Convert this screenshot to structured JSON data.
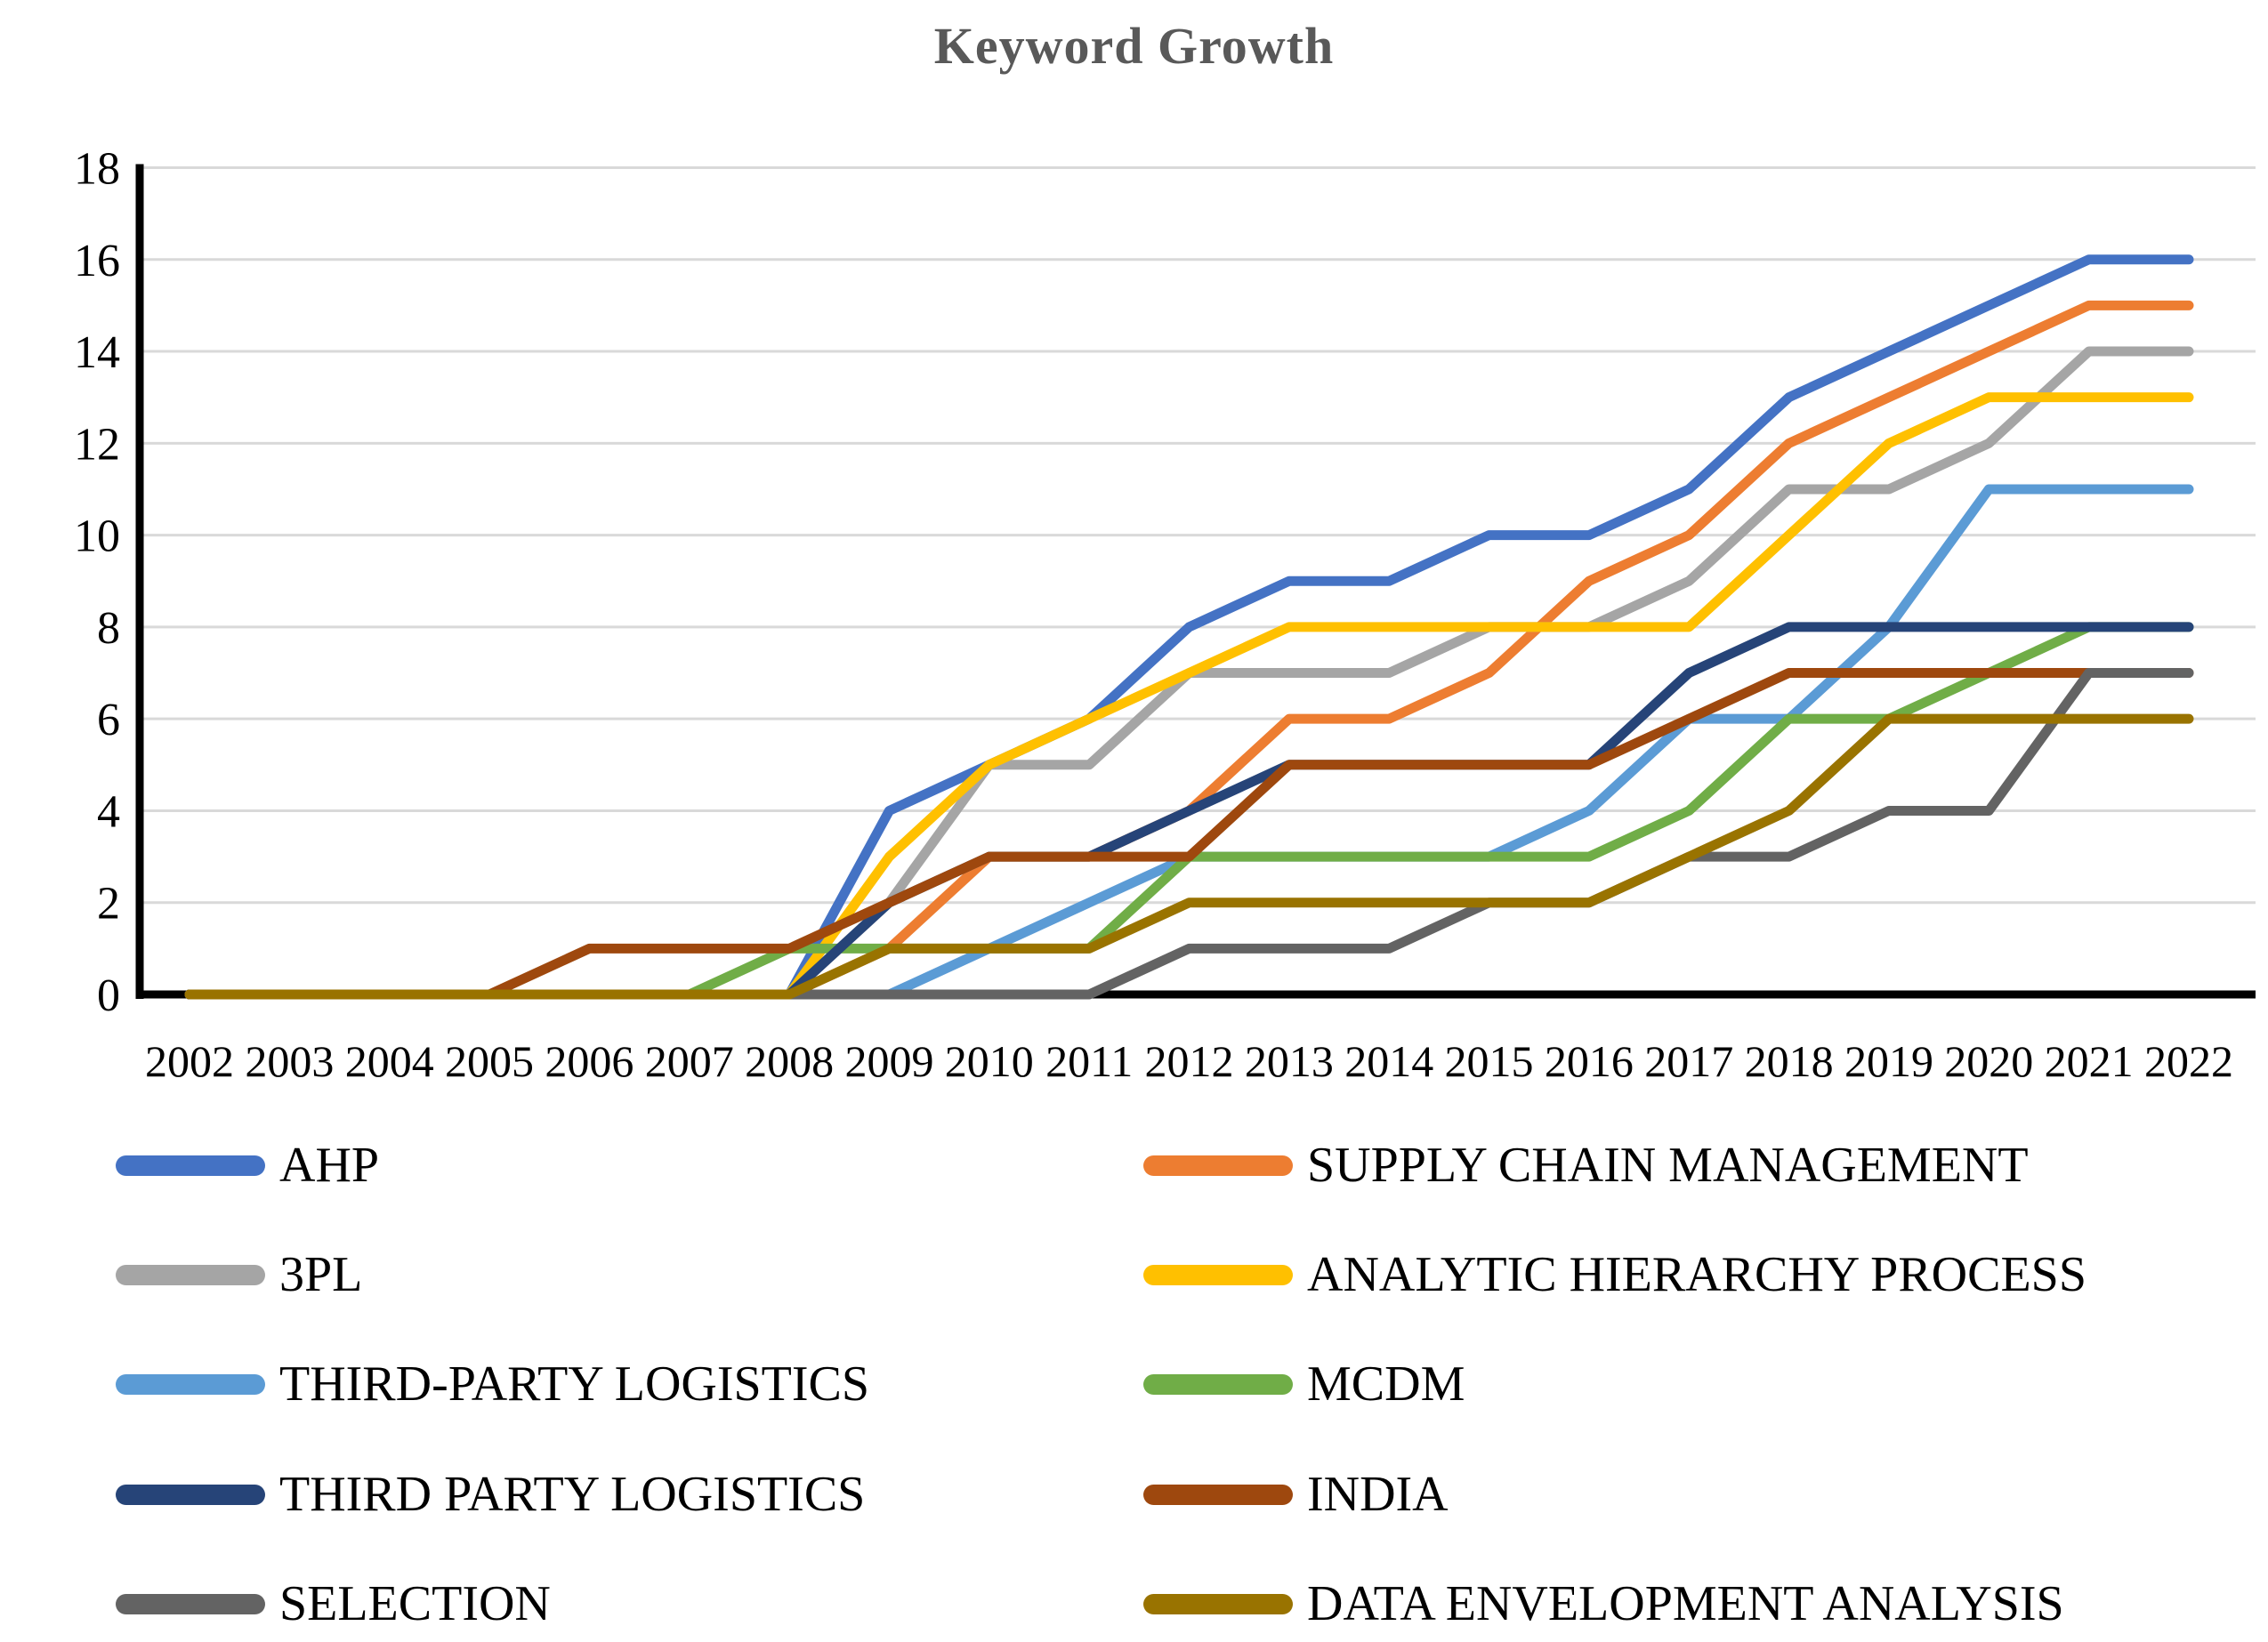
{
  "chart_data": {
    "type": "line",
    "title": "Keyword Growth",
    "x": [
      2002,
      2003,
      2004,
      2005,
      2006,
      2007,
      2008,
      2009,
      2010,
      2011,
      2012,
      2013,
      2014,
      2015,
      2016,
      2017,
      2018,
      2019,
      2020,
      2021,
      2022
    ],
    "yticks": [
      0,
      2,
      4,
      6,
      8,
      10,
      12,
      14,
      16,
      18
    ],
    "ylim": [
      0,
      18
    ],
    "grid": "horizontal",
    "legend_position": "bottom-two-columns",
    "axis_color": "#000000",
    "gridline_color": "#d9d9d9",
    "title_color": "#595959",
    "series": [
      {
        "name": "AHP",
        "color": "#4472C4",
        "values": [
          0,
          0,
          0,
          0,
          0,
          0,
          0,
          4,
          5,
          6,
          8,
          9,
          9,
          10,
          10,
          11,
          13,
          14,
          15,
          16,
          16
        ]
      },
      {
        "name": "SUPPLY CHAIN MANAGEMENT",
        "color": "#ED7D31",
        "values": [
          0,
          0,
          0,
          0,
          0,
          0,
          0,
          1,
          3,
          3,
          4,
          6,
          6,
          7,
          9,
          10,
          12,
          13,
          14,
          15,
          15
        ]
      },
      {
        "name": "3PL",
        "color": "#A5A5A5",
        "values": [
          0,
          0,
          0,
          0,
          0,
          0,
          0,
          2,
          5,
          5,
          7,
          7,
          7,
          8,
          8,
          9,
          11,
          11,
          12,
          14,
          14
        ]
      },
      {
        "name": "ANALYTIC HIERARCHY PROCESS",
        "color": "#FFC000",
        "values": [
          0,
          0,
          0,
          0,
          0,
          0,
          0,
          3,
          5,
          6,
          7,
          8,
          8,
          8,
          8,
          8,
          10,
          12,
          13,
          13,
          13
        ]
      },
      {
        "name": "THIRD-PARTY LOGISTICS",
        "color": "#5B9BD5",
        "values": [
          0,
          0,
          0,
          0,
          0,
          0,
          0,
          0,
          1,
          2,
          3,
          3,
          3,
          3,
          4,
          6,
          6,
          8,
          11,
          11,
          11
        ]
      },
      {
        "name": "MCDM",
        "color": "#70AD47",
        "values": [
          0,
          0,
          0,
          0,
          0,
          0,
          1,
          1,
          1,
          1,
          3,
          3,
          3,
          3,
          3,
          4,
          6,
          6,
          7,
          8,
          8
        ]
      },
      {
        "name": "THIRD PARTY LOGISTICS",
        "color": "#264478",
        "values": [
          0,
          0,
          0,
          0,
          0,
          0,
          0,
          2,
          3,
          3,
          4,
          5,
          5,
          5,
          5,
          7,
          8,
          8,
          8,
          8,
          8
        ]
      },
      {
        "name": "INDIA",
        "color": "#9E480E",
        "values": [
          0,
          0,
          0,
          0,
          1,
          1,
          1,
          2,
          3,
          3,
          3,
          5,
          5,
          5,
          5,
          6,
          7,
          7,
          7,
          7,
          7
        ]
      },
      {
        "name": "SELECTION",
        "color": "#636363",
        "values": [
          0,
          0,
          0,
          0,
          0,
          0,
          0,
          0,
          0,
          0,
          1,
          1,
          1,
          2,
          2,
          3,
          3,
          4,
          4,
          7,
          7
        ]
      },
      {
        "name": "DATA ENVELOPMENT ANALYSIS",
        "color": "#997300",
        "values": [
          0,
          0,
          0,
          0,
          0,
          0,
          0,
          1,
          1,
          1,
          2,
          2,
          2,
          2,
          2,
          3,
          4,
          6,
          6,
          6,
          6
        ]
      }
    ]
  }
}
